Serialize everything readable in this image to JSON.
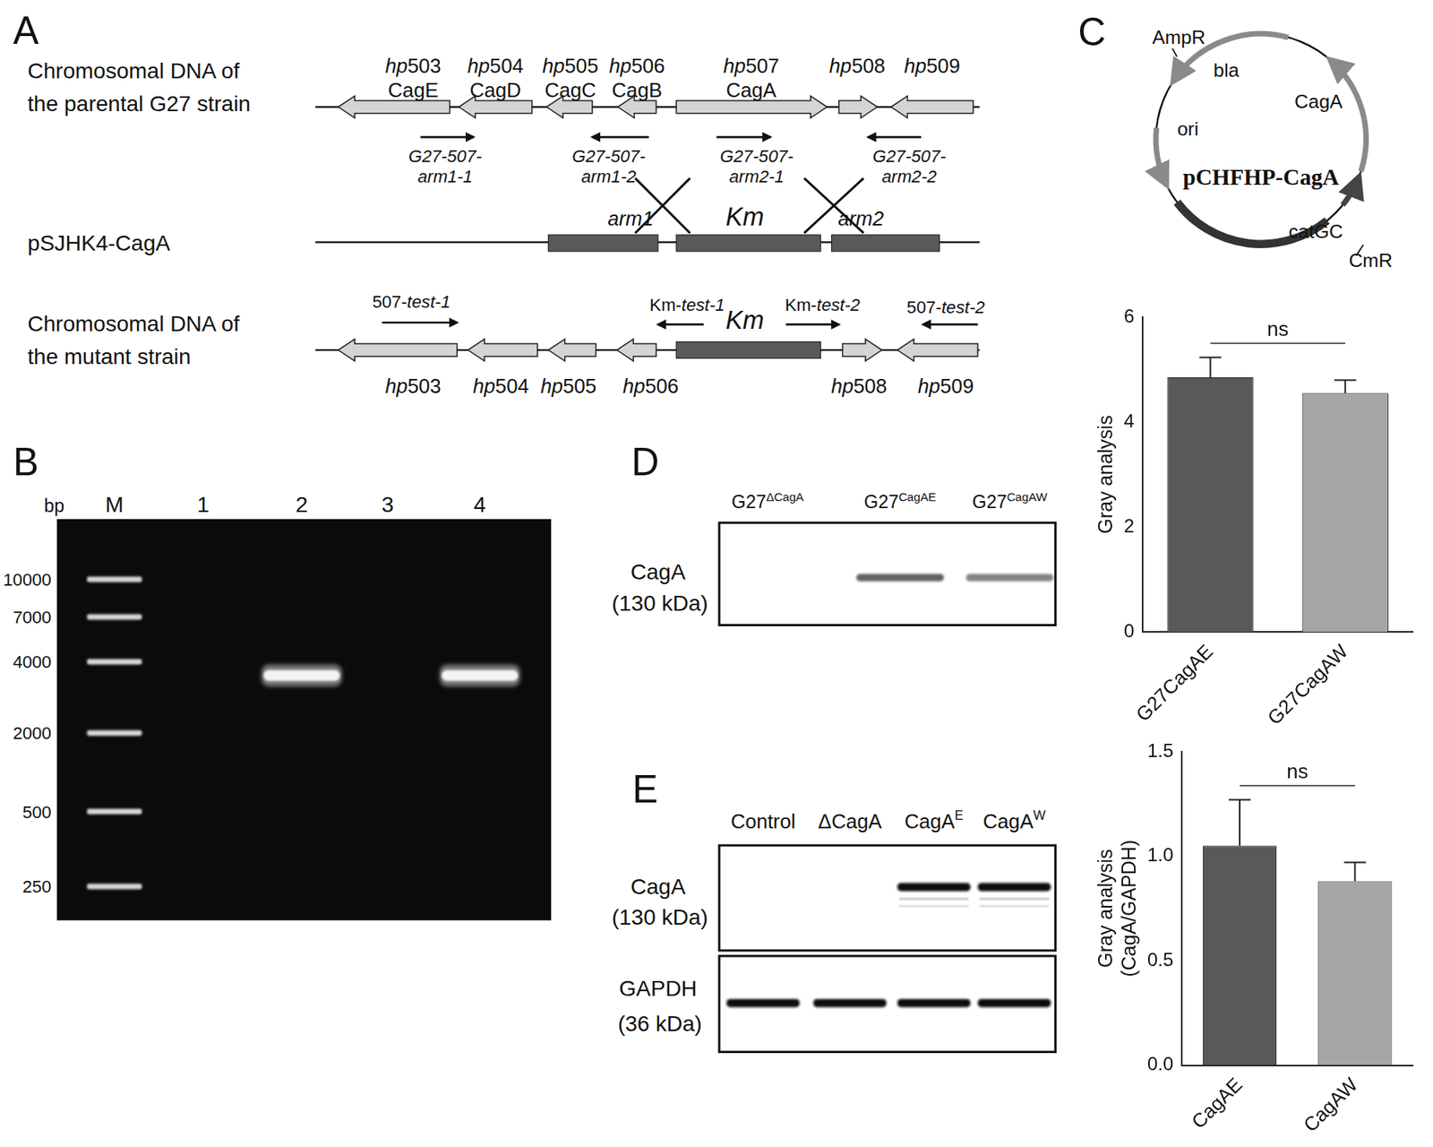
{
  "panel_A": {
    "label": "A",
    "parental": {
      "title": [
        "Chromosomal DNA of",
        "the parental G27 strain"
      ],
      "genes": [
        {
          "id": "hp503",
          "name": "CagE"
        },
        {
          "id": "hp504",
          "name": "CagD"
        },
        {
          "id": "hp505",
          "name": "CagC"
        },
        {
          "id": "hp506",
          "name": "CagB"
        },
        {
          "id": "hp507",
          "name": "CagA"
        },
        {
          "id": "hp508"
        },
        {
          "id": "hp509"
        }
      ],
      "primers": [
        [
          "G27-507-",
          "arm1-1"
        ],
        [
          "G27-507-",
          "arm1-2"
        ],
        [
          "G27-507-",
          "arm2-1"
        ],
        [
          "G27-507-",
          "arm2-2"
        ]
      ]
    },
    "plasmid": {
      "title": "pSJHK4-CagA",
      "elements": [
        "arm1",
        "Km",
        "arm2"
      ]
    },
    "mutant": {
      "title": [
        "Chromosomal DNA of",
        "the mutant strain"
      ],
      "genes": [
        "hp503",
        "hp504",
        "hp505",
        "hp506",
        "Km",
        "hp508",
        "hp509"
      ],
      "primers": [
        "507-test-1",
        "Km-test-1",
        "Km-test-2",
        "507-test-2"
      ]
    }
  },
  "panel_B": {
    "label": "B",
    "unit": "bp",
    "lanes": [
      "M",
      "1",
      "2",
      "3",
      "4"
    ],
    "ladder_bp": [
      10000,
      7000,
      4000,
      2000,
      500,
      250
    ],
    "bands": [
      {
        "lane": "2",
        "bp": 3500
      },
      {
        "lane": "4",
        "bp": 3500
      }
    ]
  },
  "panel_C": {
    "label": "C",
    "plasmid": "pCHFHP-CagA",
    "features": [
      "AmpR",
      "bla",
      "ori",
      "CagA",
      "catGC",
      "CmR"
    ]
  },
  "panel_D": {
    "label": "D",
    "lanes": [
      {
        "base": "G27",
        "sup": "ΔCagA"
      },
      {
        "base": "G27",
        "sup": "CagAE"
      },
      {
        "base": "G27",
        "sup": "CagAW"
      }
    ],
    "protein": "CagA",
    "size": "(130 kDa)",
    "bands": [
      false,
      true,
      true
    ]
  },
  "panel_E": {
    "label": "E",
    "lanes": [
      {
        "base": "Control"
      },
      {
        "base": "ΔCagA"
      },
      {
        "base": "CagA",
        "sup": "E"
      },
      {
        "base": "CagA",
        "sup": "W"
      }
    ],
    "blots": [
      {
        "protein": "CagA",
        "size": "(130 kDa)",
        "bands": [
          false,
          false,
          true,
          true
        ]
      },
      {
        "protein": "GAPDH",
        "size": "(36 kDa)",
        "bands": [
          true,
          true,
          true,
          true
        ]
      }
    ]
  },
  "chart_data": [
    {
      "type": "bar",
      "categories": [
        "G27CagAE",
        "G27CagAW"
      ],
      "values": [
        4.85,
        4.55
      ],
      "errors": [
        0.38,
        0.25
      ],
      "colors": [
        "#595959",
        "#a6a6a6"
      ],
      "ylim": [
        0,
        6
      ],
      "yticks": [
        0,
        2,
        4,
        6
      ],
      "y_label": "Gray analysis",
      "annotation": "ns",
      "grid": false
    },
    {
      "type": "bar",
      "categories": [
        "CagAE",
        "CagAW"
      ],
      "values": [
        1.05,
        0.88
      ],
      "errors": [
        0.22,
        0.09
      ],
      "colors": [
        "#595959",
        "#a6a6a6"
      ],
      "ylim": [
        0,
        1.5
      ],
      "yticks": [
        {
          "value": 0,
          "label": "0.0"
        },
        0.5,
        {
          "value": 1,
          "label": "1.0"
        },
        1.5
      ],
      "y_label": "Gray analysis",
      "y_sublabel": "(CagA/GAPDH)",
      "annotation": "ns",
      "grid": false
    }
  ]
}
